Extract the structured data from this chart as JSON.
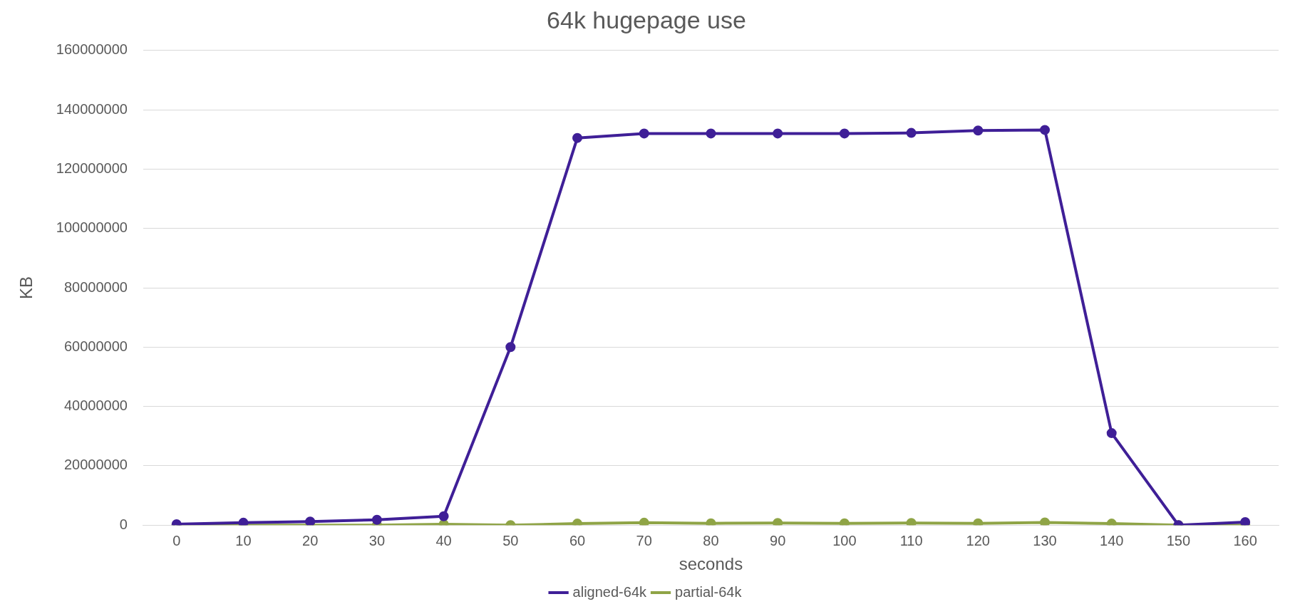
{
  "chart_data": {
    "type": "line",
    "title": "64k hugepage use",
    "xlabel": "seconds",
    "ylabel": "KB",
    "categories": [
      "0",
      "10",
      "20",
      "30",
      "40",
      "50",
      "60",
      "70",
      "80",
      "90",
      "100",
      "110",
      "120",
      "130",
      "140",
      "150",
      "160"
    ],
    "series": [
      {
        "name": "aligned-64k",
        "color": "#3f1f97",
        "values": [
          300000,
          800000,
          1200000,
          1800000,
          3000000,
          60000000,
          130500000,
          132000000,
          132000000,
          132000000,
          132000000,
          132200000,
          133000000,
          133200000,
          31000000,
          0,
          1000000
        ]
      },
      {
        "name": "partial-64k",
        "color": "#8fa446",
        "values": [
          0,
          0,
          0,
          0,
          300000,
          0,
          500000,
          800000,
          600000,
          700000,
          600000,
          700000,
          600000,
          900000,
          500000,
          0,
          0
        ]
      }
    ],
    "ylim": [
      0,
      160000000
    ],
    "yticks": [
      0,
      20000000,
      40000000,
      60000000,
      80000000,
      100000000,
      120000000,
      140000000,
      160000000
    ],
    "grid": "y",
    "legend": "bottom",
    "marker": "circle",
    "line_style": "solid"
  }
}
